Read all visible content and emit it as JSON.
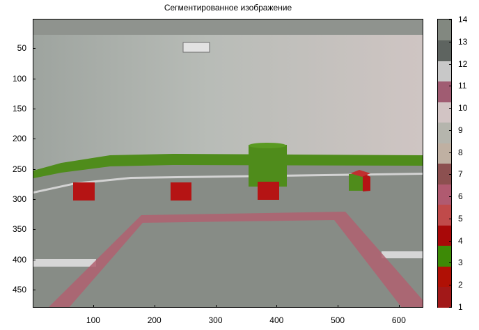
{
  "title": "Сегментированное изображение",
  "chart_data": {
    "type": "heatmap",
    "title": "Сегментированное изображение",
    "xlabel": "",
    "ylabel": "",
    "xlim": [
      1,
      640
    ],
    "ylim": [
      1,
      480
    ],
    "x_ticks": [
      100,
      200,
      300,
      400,
      500,
      600
    ],
    "y_ticks": [
      50,
      100,
      150,
      200,
      250,
      300,
      350,
      400,
      450
    ],
    "colorbar": {
      "min": 1,
      "max": 14,
      "ticks": [
        1,
        2,
        3,
        4,
        5,
        6,
        7,
        8,
        9,
        10,
        11,
        12,
        13,
        14
      ],
      "colors": [
        "#a21818",
        "#b01005",
        "#3d8a06",
        "#a80808",
        "#c04a4a",
        "#b05a70",
        "#8c5050",
        "#bfb0a2",
        "#b5b5ad",
        "#d2c4c4",
        "#a05c72",
        "#c8c8c8",
        "#5e6460",
        "#828880"
      ]
    },
    "scene_colors": {
      "wall": "#b9bdb8",
      "floor": "#858a84",
      "strip": "#4f8c1b",
      "box_red": "#b51414",
      "line_pink": "#b06070",
      "line_white": "#d6d6d6"
    }
  }
}
